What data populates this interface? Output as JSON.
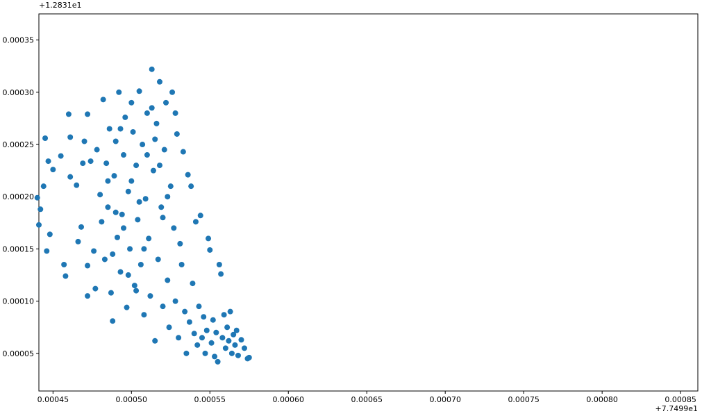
{
  "chart_data": {
    "type": "scatter",
    "color": "#1f77b4",
    "x_offset_label": "+7.7499e1",
    "y_offset_label": "+1.2831e1",
    "xlim": [
      0.000441,
      0.000861
    ],
    "ylim": [
      1.4e-05,
      0.000375
    ],
    "xticks": [
      0.00045,
      {
        "value": 0.0005,
        "label": "0.00050"
      },
      0.00055,
      {
        "value": 0.0006,
        "label": "0.00060"
      },
      0.00065,
      {
        "value": 0.0007,
        "label": "0.00070"
      },
      0.00075,
      {
        "value": 0.0008,
        "label": "0.00080"
      },
      0.00085
    ],
    "yticks": [
      {
        "value": 5e-05,
        "label": "0.00005"
      },
      {
        "value": 0.0001,
        "label": "0.00010"
      },
      0.00015,
      {
        "value": 0.0002,
        "label": "0.00020"
      },
      0.00025,
      {
        "value": 0.0003,
        "label": "0.00030"
      },
      0.00035
    ],
    "x": [
      0.00044,
      0.000441,
      0.000442,
      0.000444,
      0.000445,
      0.000446,
      0.000447,
      0.000448,
      0.00045,
      0.000455,
      0.000457,
      0.000458,
      0.00046,
      0.000461,
      0.000461,
      0.000465,
      0.000466,
      0.000468,
      0.000469,
      0.00047,
      0.000472,
      0.000472,
      0.000472,
      0.000474,
      0.000476,
      0.000477,
      0.000478,
      0.00048,
      0.000481,
      0.000482,
      0.000483,
      0.000484,
      0.000485,
      0.000486,
      0.000487,
      0.000488,
      0.000489,
      0.00049,
      0.000491,
      0.000492,
      0.000493,
      0.000494,
      0.000495,
      0.000496,
      0.000497,
      0.000498,
      0.000499,
      0.0005,
      0.000501,
      0.000502,
      0.000503,
      0.000504,
      0.000505,
      0.000506,
      0.000507,
      0.000508,
      0.000509,
      0.00051,
      0.000511,
      0.000512,
      0.000513,
      0.000514,
      0.000515,
      0.000516,
      0.000517,
      0.000518,
      0.000519,
      0.00052,
      0.000521,
      0.000522,
      0.000523,
      0.000524,
      0.000525,
      0.000526,
      0.000527,
      0.000528,
      0.000529,
      0.00053,
      0.000531,
      0.000532,
      0.000533,
      0.000534,
      0.000535,
      0.000536,
      0.000537,
      0.000538,
      0.000539,
      0.00054,
      0.000541,
      0.000542,
      0.000543,
      0.000544,
      0.000545,
      0.000546,
      0.000547,
      0.000548,
      0.000549,
      0.00055,
      0.000551,
      0.000552,
      0.000553,
      0.000554,
      0.000555,
      0.000556,
      0.000557,
      0.000558,
      0.000559,
      0.00056,
      0.000561,
      0.000562,
      0.000563,
      0.000564,
      0.000565,
      0.000566,
      0.000567,
      0.000568,
      0.00057,
      0.000572,
      0.000574,
      0.000575,
      0.000485,
      0.00049,
      0.000495,
      0.0005,
      0.000505,
      0.00051,
      0.000515,
      0.00052,
      0.000488,
      0.000498,
      0.000508,
      0.000518,
      0.000528,
      0.000493,
      0.000503,
      0.000513,
      0.000523
    ],
    "y": [
      0.000199,
      0.000173,
      0.000188,
      0.00021,
      0.000256,
      0.000148,
      0.000234,
      0.000164,
      0.000226,
      0.000239,
      0.000135,
      0.000124,
      0.000279,
      0.000257,
      0.000219,
      0.000211,
      0.000157,
      0.000171,
      0.000232,
      0.000253,
      0.000279,
      0.000134,
      0.000105,
      0.000234,
      0.000148,
      0.000112,
      0.000245,
      0.000202,
      0.000176,
      0.000293,
      0.00014,
      0.000232,
      0.00019,
      0.000265,
      0.000108,
      8.1e-05,
      0.00022,
      0.000253,
      0.000161,
      0.0003,
      0.000128,
      0.000183,
      0.00024,
      0.000276,
      9.4e-05,
      0.000205,
      0.00015,
      0.00029,
      0.000262,
      0.000115,
      0.00023,
      0.000178,
      0.000301,
      0.000135,
      0.00025,
      8.7e-05,
      0.000198,
      0.00028,
      0.00016,
      0.000105,
      0.000322,
      0.000225,
      6.2e-05,
      0.00027,
      0.00014,
      0.00031,
      0.00019,
      9.5e-05,
      0.000245,
      0.00029,
      0.00012,
      7.5e-05,
      0.00021,
      0.0003,
      0.00017,
      0.0001,
      0.00026,
      6.5e-05,
      0.000155,
      0.000135,
      0.000243,
      9e-05,
      5e-05,
      0.000221,
      8e-05,
      0.00021,
      0.000117,
      6.9e-05,
      0.000176,
      5.8e-05,
      9.5e-05,
      0.000182,
      6.5e-05,
      8.5e-05,
      5e-05,
      7.2e-05,
      0.00016,
      0.000149,
      6e-05,
      8.2e-05,
      4.7e-05,
      7e-05,
      4.2e-05,
      0.000135,
      0.000126,
      6.5e-05,
      8.7e-05,
      5.5e-05,
      7.5e-05,
      6.2e-05,
      9e-05,
      5e-05,
      6.8e-05,
      5.8e-05,
      7.2e-05,
      4.8e-05,
      6.3e-05,
      5.5e-05,
      4.5e-05,
      4.6e-05,
      0.000215,
      0.000185,
      0.00017,
      0.000215,
      0.000195,
      0.00024,
      0.000255,
      0.00018,
      0.000145,
      0.000125,
      0.00015,
      0.00023,
      0.00028,
      0.000265,
      0.00011,
      0.000285,
      0.0002
    ]
  }
}
